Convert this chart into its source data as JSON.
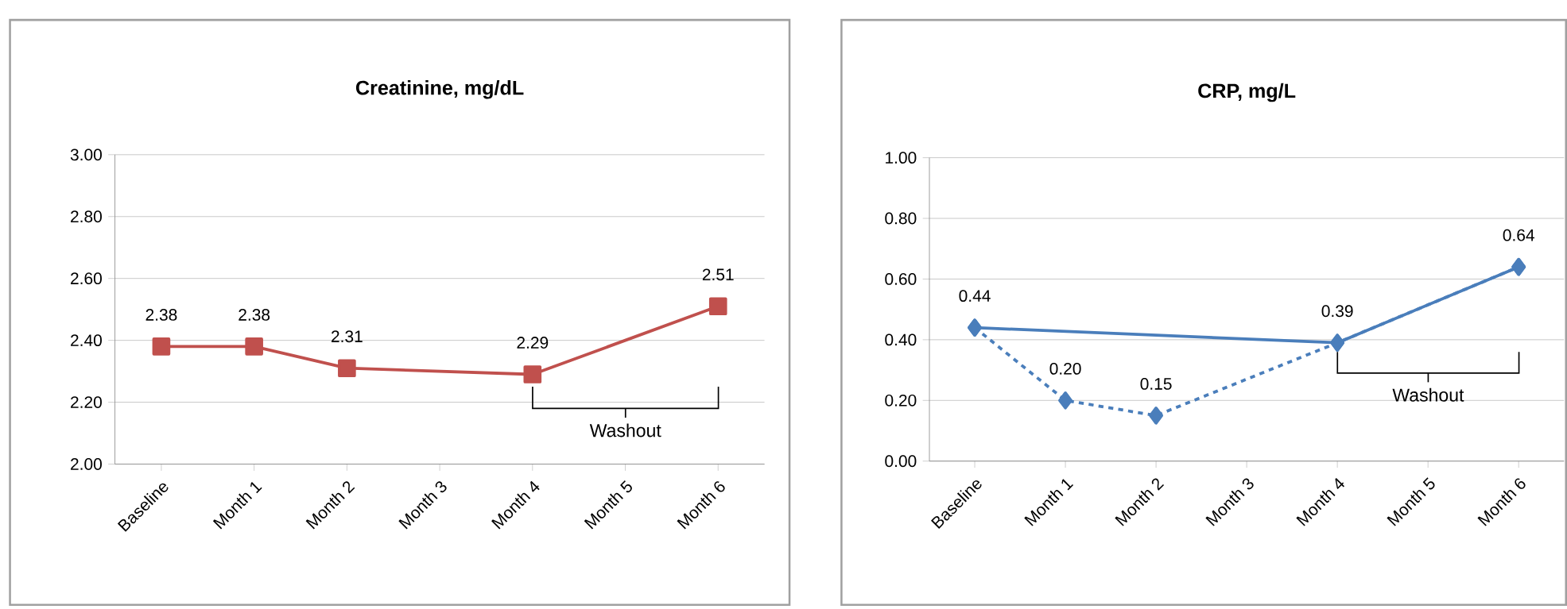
{
  "chart_data": [
    {
      "type": "line",
      "title": "Creatinine, mg/dL",
      "categories": [
        "Baseline",
        "Month 1",
        "Month 2",
        "Month 3",
        "Month 4",
        "Month 5",
        "Month 6"
      ],
      "series": [
        {
          "color": "#c0504d",
          "values": [
            2.38,
            2.38,
            2.31,
            null,
            2.29,
            null,
            2.51
          ]
        }
      ],
      "ylim": [
        2.0,
        3.0
      ],
      "yticks": [
        {
          "value": 2.0,
          "label": "2.00"
        },
        {
          "value": 2.2,
          "label": "2.20"
        },
        {
          "value": 2.4,
          "label": "2.40"
        },
        {
          "value": 2.6,
          "label": "2.60"
        },
        {
          "value": 2.8,
          "label": "2.80"
        },
        {
          "value": 3.0,
          "label": "3.00"
        }
      ],
      "grid": "y",
      "marker": "square",
      "line_style": "solid",
      "data_labels": true,
      "annotations": [
        "Washout"
      ]
    },
    {
      "type": "line",
      "title": "CRP, mg/L",
      "categories": [
        "Baseline",
        "Month 1",
        "Month 2",
        "Month 3",
        "Month 4",
        "Month 5",
        "Month 6"
      ],
      "series": [
        {
          "color": "#4a7ebb",
          "values": [
            0.44,
            null,
            null,
            null,
            0.39,
            null,
            0.64
          ]
        },
        {
          "color": "#4a7ebb",
          "line_style": "dashed",
          "values": [
            0.44,
            0.2,
            0.15,
            null,
            0.39,
            null,
            0.64
          ],
          "value_labels": [
            "0.44",
            "0.20",
            "0.15",
            null,
            "0.39",
            null,
            "0.64"
          ]
        }
      ],
      "ylim": [
        0.0,
        1.0
      ],
      "yticks": [
        {
          "value": 0.0,
          "label": "0.00"
        },
        {
          "value": 0.2,
          "label": "0.20"
        },
        {
          "value": 0.4,
          "label": "0.40"
        },
        {
          "value": 0.6,
          "label": "0.60"
        },
        {
          "value": 0.8,
          "label": "0.80"
        },
        {
          "value": 1.0,
          "label": "1.00"
        }
      ],
      "grid": "y",
      "marker": "diamond",
      "line_style": "solid",
      "annotations": [
        "Washout"
      ]
    }
  ]
}
